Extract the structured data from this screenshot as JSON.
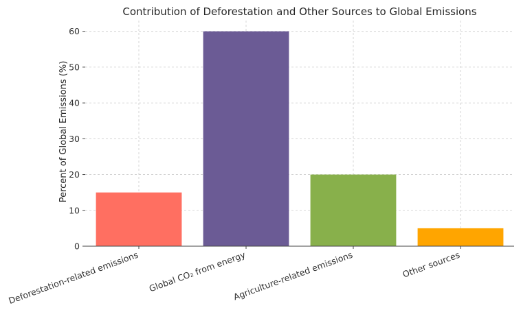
{
  "chart_data": {
    "type": "bar",
    "title": "Contribution of Deforestation and Other Sources to Global Emissions",
    "xlabel": "",
    "ylabel": "Percent of Global Emissions (%)",
    "categories": [
      "Deforestation-related emissions",
      "Global CO₂ from energy",
      "Agriculture-related emissions",
      "Other sources"
    ],
    "values": [
      15,
      60,
      20,
      5
    ],
    "colors": [
      "#ff6f61",
      "#6b5b95",
      "#88b04b",
      "#ffa500"
    ],
    "ylim": [
      0,
      63
    ],
    "yticks": [
      0,
      10,
      20,
      30,
      40,
      50,
      60
    ],
    "grid": true
  }
}
